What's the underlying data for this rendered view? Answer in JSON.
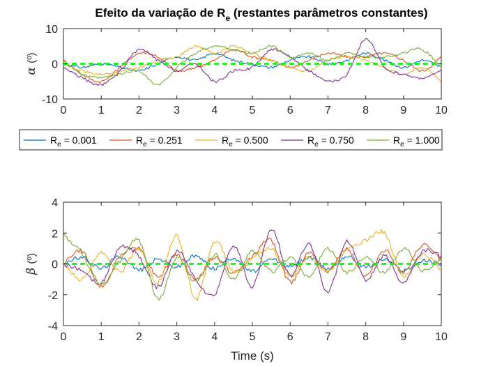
{
  "chart_data": [
    {
      "type": "line",
      "title_main": "Efeito da variação de R",
      "title_sub": "e",
      "title_tail": " (restantes parâmetros constantes)",
      "ylabel_symbol": "α",
      "ylabel_unit": "(º)",
      "xlabel": "",
      "xlim": [
        0,
        10
      ],
      "ylim": [
        -10,
        10
      ],
      "xticks": [
        "0",
        "1",
        "2",
        "3",
        "4",
        "5",
        "6",
        "7",
        "8",
        "9",
        "10"
      ],
      "yticks": [
        "-10",
        "0",
        "10"
      ],
      "reference": {
        "y": 0,
        "color": "#00FF00",
        "style": "dashed"
      },
      "series": [
        {
          "name": "R_e = 0.001",
          "color": "#0072BD",
          "x": [
            0,
            0.5,
            1,
            1.5,
            2,
            2.5,
            3,
            3.5,
            4,
            4.5,
            5,
            5.5,
            6,
            6.5,
            7,
            7.5,
            8,
            8.5,
            9,
            9.5,
            10
          ],
          "y": [
            0,
            -1,
            0,
            -1,
            -2,
            0,
            2,
            1,
            3,
            1,
            0,
            -1,
            1,
            2,
            0,
            1,
            3,
            1,
            -1,
            1,
            -1
          ]
        },
        {
          "name": "R_e = 0.251",
          "color": "#D95319",
          "x": [
            0,
            0.5,
            1,
            1.5,
            2,
            2.5,
            3,
            3.5,
            4,
            4.5,
            5,
            5.5,
            6,
            6.5,
            7,
            7.5,
            8,
            8.5,
            9,
            9.5,
            10
          ],
          "y": [
            1,
            -3,
            -5,
            -1,
            3,
            2,
            -2,
            -1,
            1,
            4,
            2,
            1,
            -1,
            1,
            3,
            2,
            2,
            3,
            1,
            -2,
            2
          ]
        },
        {
          "name": "R_e = 0.500",
          "color": "#EDB120",
          "x": [
            0,
            0.5,
            1,
            1.5,
            2,
            2.5,
            3,
            3.5,
            4,
            4.5,
            5,
            5.5,
            6,
            6.5,
            7,
            7.5,
            8,
            8.5,
            9,
            9.5,
            10
          ],
          "y": [
            0,
            -2,
            -3,
            -2,
            -1,
            1,
            2,
            5,
            3,
            5,
            3,
            1,
            -1,
            -2,
            1,
            2,
            1,
            -1,
            -3,
            -1,
            -5
          ]
        },
        {
          "name": "R_e = 0.750",
          "color": "#7E2F8E",
          "x": [
            0,
            0.5,
            1,
            1.5,
            2,
            2.5,
            3,
            3.5,
            4,
            4.5,
            5,
            5.5,
            6,
            6.5,
            7,
            7.5,
            8,
            8.5,
            9,
            9.5,
            10
          ],
          "y": [
            -1,
            -4,
            -6,
            -2,
            4,
            1,
            -2,
            0,
            -5,
            -2,
            -1,
            4,
            2,
            -2,
            -5,
            -3,
            7,
            -1,
            -3,
            -4,
            -2
          ]
        },
        {
          "name": "R_e = 1.000",
          "color": "#77AC30",
          "x": [
            0,
            0.5,
            1,
            1.5,
            2,
            2.5,
            3,
            3.5,
            4,
            4.5,
            5,
            5.5,
            6,
            6.5,
            7,
            7.5,
            8,
            8.5,
            9,
            9.5,
            10
          ],
          "y": [
            1,
            -3,
            -4,
            -3,
            -2,
            -6,
            -1,
            3,
            5,
            4,
            3,
            5,
            2,
            3,
            1,
            3,
            2,
            2,
            3,
            4,
            -1
          ]
        }
      ],
      "legend": {
        "placement": "below",
        "entries": [
          {
            "prefix": "R",
            "sub": "e",
            "suffix": " = 0.001"
          },
          {
            "prefix": "R",
            "sub": "e",
            "suffix": " = 0.251"
          },
          {
            "prefix": "R",
            "sub": "e",
            "suffix": " = 0.500"
          },
          {
            "prefix": "R",
            "sub": "e",
            "suffix": " = 0.750"
          },
          {
            "prefix": "R",
            "sub": "e",
            "suffix": " = 1.000"
          }
        ]
      }
    },
    {
      "type": "line",
      "ylabel_symbol": "β",
      "ylabel_unit": "(º)",
      "xlabel": "Time (s)",
      "xlim": [
        0,
        10
      ],
      "ylim": [
        -4,
        4
      ],
      "xticks": [
        "0",
        "1",
        "2",
        "3",
        "4",
        "5",
        "6",
        "7",
        "8",
        "9",
        "10"
      ],
      "yticks": [
        "-4",
        "-2",
        "0",
        "2",
        "4"
      ],
      "reference": {
        "y": 0,
        "color": "#00FF00",
        "style": "dashed"
      },
      "series": [
        {
          "name": "R_e = 0.001",
          "color": "#0072BD",
          "x": [
            0,
            0.5,
            1,
            1.5,
            2,
            2.5,
            3,
            3.5,
            4,
            4.5,
            5,
            5.5,
            6,
            6.5,
            7,
            7.5,
            8,
            8.5,
            9,
            9.5,
            10
          ],
          "y": [
            0,
            0.4,
            -0.3,
            0.5,
            -0.4,
            0.3,
            -0.2,
            0.5,
            -0.3,
            0.4,
            -0.5,
            0.3,
            -0.2,
            0.4,
            -0.3,
            0.5,
            -0.2,
            0.3,
            -0.4,
            0.2,
            0
          ]
        },
        {
          "name": "R_e = 0.251",
          "color": "#D95319",
          "x": [
            0,
            0.5,
            1,
            1.5,
            2,
            2.5,
            3,
            3.5,
            4,
            4.5,
            5,
            5.5,
            6,
            6.5,
            7,
            7.5,
            8,
            8.5,
            9,
            9.5,
            10
          ],
          "y": [
            0,
            0.8,
            -1.5,
            0.5,
            1.0,
            -0.8,
            0.6,
            -1.0,
            0.4,
            -0.6,
            0.5,
            1.5,
            -1.2,
            0.8,
            -0.5,
            1.0,
            -0.8,
            0.9,
            -0.6,
            1.2,
            0.2
          ]
        },
        {
          "name": "R_e = 0.500",
          "color": "#EDB120",
          "x": [
            0,
            0.5,
            1,
            1.5,
            2,
            2.5,
            3,
            3.5,
            4,
            4.5,
            5,
            5.5,
            6,
            6.5,
            7,
            7.5,
            8,
            8.5,
            9,
            9.5,
            10
          ],
          "y": [
            0,
            -1.0,
            0.8,
            -0.5,
            1.0,
            -1.2,
            1.8,
            -2.3,
            1.4,
            -0.5,
            0.3,
            1.0,
            -0.8,
            0.5,
            -0.5,
            1.0,
            1.5,
            2.0,
            -0.8,
            0.6,
            -0.4
          ]
        },
        {
          "name": "R_e = 0.750",
          "color": "#7E2F8E",
          "x": [
            0,
            0.5,
            1,
            1.5,
            2,
            2.5,
            3,
            3.5,
            4,
            4.5,
            5,
            5.5,
            6,
            6.5,
            7,
            7.5,
            8,
            8.5,
            9,
            9.5,
            10
          ],
          "y": [
            0,
            -0.5,
            -1.2,
            1.0,
            0.5,
            -1.5,
            0.8,
            -1.0,
            -2.0,
            1.2,
            -1.5,
            2.2,
            -0.8,
            1.3,
            -1.8,
            1.5,
            -1.0,
            0.5,
            -1.2,
            0.8,
            0.5
          ]
        },
        {
          "name": "R_e = 1.000",
          "color": "#77AC30",
          "x": [
            0,
            0.5,
            1,
            1.5,
            2,
            2.5,
            3,
            3.5,
            4,
            4.5,
            5,
            5.5,
            6,
            6.5,
            7,
            7.5,
            8,
            8.5,
            9,
            9.5,
            10
          ],
          "y": [
            1.9,
            0.6,
            -1.3,
            0.2,
            1.5,
            -2.3,
            0.4,
            -1.2,
            0.6,
            -1.0,
            0.8,
            -0.5,
            0.4,
            -0.8,
            1.0,
            -0.6,
            0.5,
            -0.6,
            1.0,
            -0.4,
            0.3
          ]
        }
      ]
    }
  ]
}
